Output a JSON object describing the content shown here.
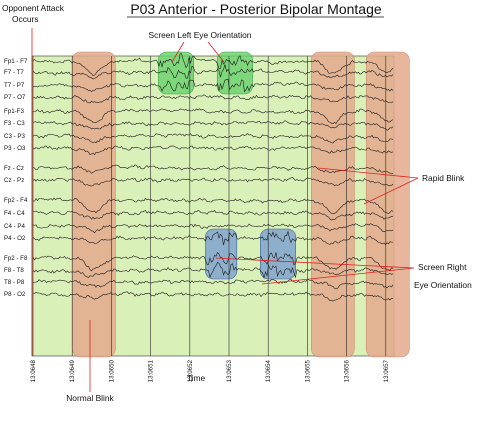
{
  "chart_data": {
    "type": "line",
    "title": "P03 Anterior - Posterior Bipolar Montage",
    "xlabel": "Time",
    "ylabel": "",
    "x_ticks": [
      "13:0648",
      "13:0649",
      "13:0650",
      "13:0651",
      "13:0652",
      "13:0653",
      "13:0654",
      "13:0655",
      "13:0656",
      "13:0657"
    ],
    "grid": "vertical lines at each time tick",
    "background_color": "#d9f0b8",
    "channels": [
      "Fp1 - F7",
      "F7 - T7",
      "T7 - P7",
      "P7 - O7",
      "Fp1-F3",
      "F3 - C3",
      "C3 - P3",
      "P3 - O3",
      "Fz - Cz",
      "Cz - Pz",
      "Fp2 - F4",
      "F4 - C4",
      "C4 - P4",
      "P4 - O2",
      "Fp2 - F8",
      "F8 - T8",
      "T8 - P8",
      "P8 - O2"
    ],
    "regions": [
      {
        "label": "Normal Blink",
        "kind": "blink",
        "color": "#e4a98c",
        "x_start": 13.0649,
        "x_end": 13.06501,
        "channels": "all"
      },
      {
        "label": "Screen Left Eye Orientation",
        "kind": "left-eye",
        "color": "#66d16a",
        "x_start": 13.06512,
        "x_end": 13.06521,
        "channels": [
          "Fp1 - F7",
          "F7 - T7",
          "T7 - P7"
        ]
      },
      {
        "label": "Screen Left Eye Orientation",
        "kind": "left-eye",
        "color": "#66d16a",
        "x_start": 13.06527,
        "x_end": 13.06536,
        "channels": [
          "Fp1 - F7",
          "F7 - T7",
          "T7 - P7"
        ]
      },
      {
        "label": "Screen Right Eye Orientation",
        "kind": "right-eye",
        "color": "#7a9fd0",
        "x_start": 13.06524,
        "x_end": 13.06532,
        "channels": [
          "P4 - O2",
          "Fp2 - F8",
          "F8 - T8"
        ]
      },
      {
        "label": "Screen Right Eye Orientation",
        "kind": "right-eye",
        "color": "#7a9fd0",
        "x_start": 13.06538,
        "x_end": 13.06547,
        "channels": [
          "P4 - O2",
          "Fp2 - F8",
          "F8 - T8"
        ]
      },
      {
        "label": "Rapid Blink",
        "kind": "blink",
        "color": "#e4a98c",
        "x_start": 13.06551,
        "x_end": 13.06562,
        "channels": "all"
      },
      {
        "label": "Rapid Blink",
        "kind": "blink",
        "color": "#e4a98c",
        "x_start": 13.06565,
        "x_end": 13.06576,
        "channels": "all"
      }
    ],
    "annotations": [
      {
        "text": "Opponent Attack",
        "line2": "Occurs"
      },
      {
        "text": "Screen Left Eye Orientation",
        "line2": ""
      },
      {
        "text": "Rapid Blink",
        "line2": ""
      },
      {
        "text": "Screen Right",
        "line2": "Eye Orientation"
      },
      {
        "text": "Normal Blink",
        "line2": ""
      }
    ]
  }
}
